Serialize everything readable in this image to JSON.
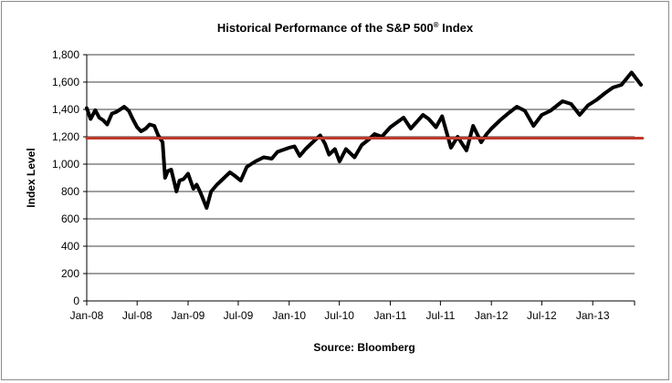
{
  "chart_data": {
    "type": "line",
    "title": "Historical Performance of the S&P 500",
    "title_superscript": "®",
    "title_suffix": "Index",
    "ylabel": "Index Level",
    "xlabel": "Source: Bloomberg",
    "ylim": [
      0,
      1800
    ],
    "yticks": [
      0,
      200,
      400,
      600,
      800,
      1000,
      1200,
      1400,
      1600,
      1800
    ],
    "ytick_labels": [
      "0",
      "200",
      "400",
      "600",
      "800",
      "1,000",
      "1,200",
      "1,400",
      "1,600",
      "1,800"
    ],
    "x_ticks": [
      "2008-01",
      "2008-07",
      "2009-01",
      "2009-07",
      "2010-01",
      "2010-07",
      "2011-01",
      "2011-07",
      "2012-01",
      "2012-07",
      "2013-01"
    ],
    "xtick_labels": [
      "Jan-08",
      "Jul-08",
      "Jan-09",
      "Jul-09",
      "Jan-10",
      "Jul-10",
      "Jan-11",
      "Jul-11",
      "Jan-12",
      "Jul-12",
      "Jan-13"
    ],
    "xlim": [
      "2008-01",
      "2013-06"
    ],
    "grid": true,
    "series": [
      {
        "color": "#000000",
        "points": [
          [
            "2008-01-01",
            1410
          ],
          [
            "2008-01-15",
            1330
          ],
          [
            "2008-02-01",
            1395
          ],
          [
            "2008-02-15",
            1340
          ],
          [
            "2008-03-01",
            1320
          ],
          [
            "2008-03-15",
            1290
          ],
          [
            "2008-04-01",
            1370
          ],
          [
            "2008-04-15",
            1380
          ],
          [
            "2008-05-01",
            1400
          ],
          [
            "2008-05-15",
            1420
          ],
          [
            "2008-06-01",
            1390
          ],
          [
            "2008-06-15",
            1330
          ],
          [
            "2008-07-01",
            1270
          ],
          [
            "2008-07-15",
            1240
          ],
          [
            "2008-08-01",
            1260
          ],
          [
            "2008-08-15",
            1290
          ],
          [
            "2008-09-01",
            1280
          ],
          [
            "2008-09-15",
            1210
          ],
          [
            "2008-10-01",
            1160
          ],
          [
            "2008-10-10",
            900
          ],
          [
            "2008-10-20",
            950
          ],
          [
            "2008-11-01",
            960
          ],
          [
            "2008-11-20",
            800
          ],
          [
            "2008-12-01",
            880
          ],
          [
            "2008-12-15",
            890
          ],
          [
            "2009-01-01",
            930
          ],
          [
            "2009-01-20",
            820
          ],
          [
            "2009-02-01",
            850
          ],
          [
            "2009-02-15",
            790
          ],
          [
            "2009-03-09",
            680
          ],
          [
            "2009-03-25",
            800
          ],
          [
            "2009-04-15",
            850
          ],
          [
            "2009-05-01",
            880
          ],
          [
            "2009-06-01",
            940
          ],
          [
            "2009-06-15",
            920
          ],
          [
            "2009-07-10",
            880
          ],
          [
            "2009-08-01",
            980
          ],
          [
            "2009-09-01",
            1020
          ],
          [
            "2009-10-01",
            1050
          ],
          [
            "2009-10-30",
            1040
          ],
          [
            "2009-11-20",
            1090
          ],
          [
            "2010-01-01",
            1120
          ],
          [
            "2010-01-20",
            1130
          ],
          [
            "2010-02-08",
            1060
          ],
          [
            "2010-03-01",
            1110
          ],
          [
            "2010-04-01",
            1170
          ],
          [
            "2010-04-23",
            1210
          ],
          [
            "2010-05-10",
            1150
          ],
          [
            "2010-05-25",
            1070
          ],
          [
            "2010-06-15",
            1110
          ],
          [
            "2010-07-02",
            1020
          ],
          [
            "2010-07-25",
            1110
          ],
          [
            "2010-08-25",
            1050
          ],
          [
            "2010-09-20",
            1140
          ],
          [
            "2010-10-15",
            1180
          ],
          [
            "2010-11-05",
            1220
          ],
          [
            "2010-12-01",
            1200
          ],
          [
            "2011-01-01",
            1270
          ],
          [
            "2011-02-18",
            1340
          ],
          [
            "2011-03-16",
            1260
          ],
          [
            "2011-04-29",
            1360
          ],
          [
            "2011-05-20",
            1330
          ],
          [
            "2011-06-15",
            1270
          ],
          [
            "2011-07-07",
            1350
          ],
          [
            "2011-08-08",
            1120
          ],
          [
            "2011-09-01",
            1200
          ],
          [
            "2011-10-03",
            1100
          ],
          [
            "2011-10-27",
            1280
          ],
          [
            "2011-11-25",
            1160
          ],
          [
            "2011-12-15",
            1220
          ],
          [
            "2012-01-01",
            1260
          ],
          [
            "2012-02-01",
            1320
          ],
          [
            "2012-03-01",
            1370
          ],
          [
            "2012-04-02",
            1420
          ],
          [
            "2012-05-01",
            1390
          ],
          [
            "2012-06-01",
            1280
          ],
          [
            "2012-07-01",
            1360
          ],
          [
            "2012-08-01",
            1390
          ],
          [
            "2012-09-14",
            1460
          ],
          [
            "2012-10-15",
            1440
          ],
          [
            "2012-11-15",
            1360
          ],
          [
            "2012-12-15",
            1430
          ],
          [
            "2013-01-15",
            1470
          ],
          [
            "2013-02-15",
            1520
          ],
          [
            "2013-03-15",
            1560
          ],
          [
            "2013-04-15",
            1580
          ],
          [
            "2013-05-21",
            1670
          ],
          [
            "2013-06-24",
            1580
          ]
        ]
      },
      {
        "color": "#c0392b",
        "points": [
          [
            "2008-01-01",
            1190
          ],
          [
            "2013-06-30",
            1190
          ]
        ]
      }
    ]
  }
}
